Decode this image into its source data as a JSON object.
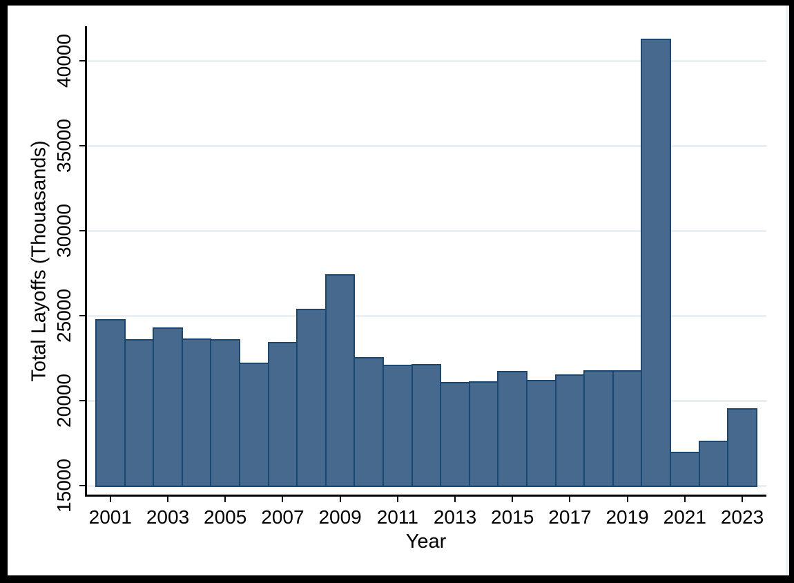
{
  "chart_data": {
    "type": "bar",
    "title": "",
    "xlabel": "Year",
    "ylabel": "Total Layoffs (Thouasands)",
    "x": [
      2001,
      2002,
      2003,
      2004,
      2005,
      2006,
      2007,
      2008,
      2009,
      2010,
      2011,
      2012,
      2013,
      2014,
      2015,
      2016,
      2017,
      2018,
      2019,
      2020,
      2021,
      2022,
      2023
    ],
    "values": [
      24800,
      23600,
      24300,
      23650,
      23600,
      22250,
      23450,
      25400,
      27450,
      22550,
      22100,
      22150,
      21100,
      21150,
      21750,
      21200,
      21550,
      21800,
      21800,
      41300,
      17000,
      17650,
      19550
    ],
    "x_tick_labels": [
      "2001",
      "2003",
      "2005",
      "2007",
      "2009",
      "2011",
      "2013",
      "2015",
      "2017",
      "2019",
      "2021",
      "2023"
    ],
    "y_ticks": [
      15000,
      20000,
      25000,
      30000,
      35000,
      40000
    ],
    "y_tick_labels": [
      "15000",
      "20000",
      "25000",
      "30000",
      "35000",
      "40000"
    ],
    "ylim": [
      15000,
      41900
    ],
    "bar_gap": 0,
    "grid": "horizontal",
    "legend": "none",
    "colors": {
      "bar_fill": "#47698d",
      "bar_border": "#1a476f",
      "gridline": "#e9eff3",
      "axis": "#000000",
      "plot_background": "#ffffff",
      "frame": "#000000"
    }
  }
}
